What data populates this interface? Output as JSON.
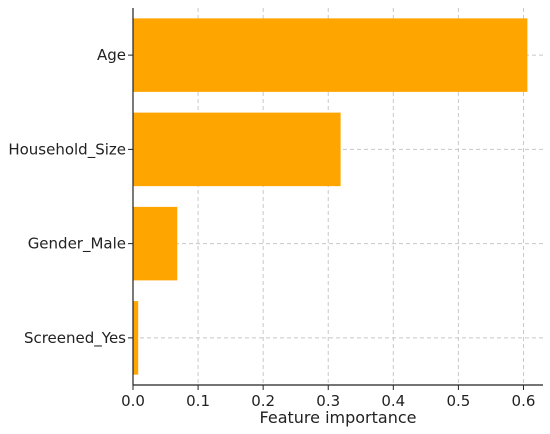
{
  "chart_data": {
    "type": "bar",
    "orientation": "horizontal",
    "categories": [
      "Age",
      "Household_Size",
      "Gender_Male",
      "Screened_Yes"
    ],
    "values": [
      0.606,
      0.319,
      0.068,
      0.008
    ],
    "title": "",
    "xlabel": "Feature importance",
    "ylabel": "",
    "xlim": [
      0.0,
      0.63
    ],
    "xticks": [
      0.0,
      0.1,
      0.2,
      0.3,
      0.4,
      0.5,
      0.6
    ],
    "xtick_labels": [
      "0.0",
      "0.1",
      "0.2",
      "0.3",
      "0.4",
      "0.5",
      "0.6"
    ],
    "grid": true,
    "bar_color": "#FFA500"
  }
}
